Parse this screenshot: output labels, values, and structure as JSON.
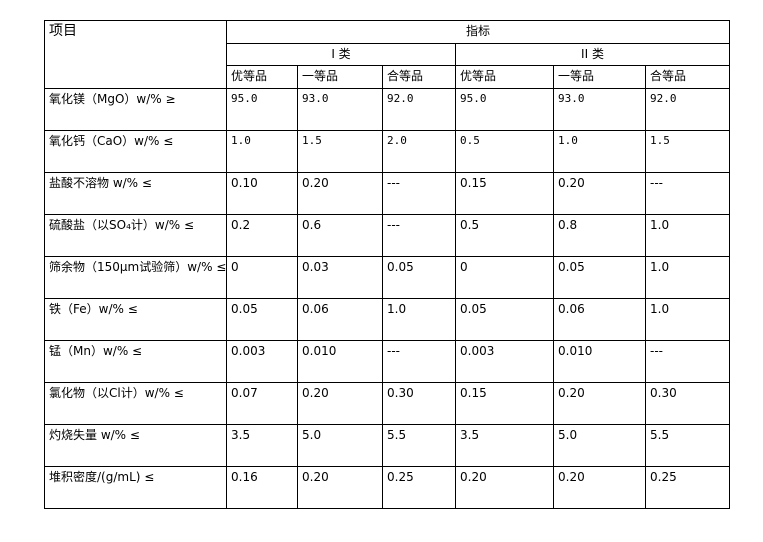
{
  "header": {
    "item": "项目",
    "indicator": "指标",
    "class1": "I 类",
    "class2": "II 类",
    "grades": [
      "优等品",
      "一等品",
      "合等品",
      "优等品",
      "一等品",
      "合等品"
    ]
  },
  "rows": [
    {
      "name": "氧化镁（MgO）w/% ≥",
      "values": [
        "95.0",
        "93.0",
        "92.0",
        "95.0",
        "93.0",
        "92.0"
      ]
    },
    {
      "name": "氧化钙（CaO）w/% ≤",
      "values": [
        "1.0",
        "1.5",
        "2.0",
        "0.5",
        "1.0",
        "1.5"
      ]
    },
    {
      "name": "盐酸不溶物 w/% ≤",
      "values": [
        "0.10",
        "0.20",
        "---",
        "0.15",
        "0.20",
        "---"
      ]
    },
    {
      "name": "硫酸盐（以SO₄计）w/% ≤",
      "values": [
        "0.2",
        "0.6",
        "---",
        "0.5",
        "0.8",
        "1.0"
      ]
    },
    {
      "name": "筛余物（150μm试验筛）w/% ≤",
      "values": [
        "0",
        "0.03",
        "0.05",
        "0",
        "0.05",
        "1.0"
      ]
    },
    {
      "name": "铁（Fe）w/% ≤",
      "values": [
        "0.05",
        "0.06",
        "1.0",
        "0.05",
        "0.06",
        "1.0"
      ]
    },
    {
      "name": "锰（Mn）w/% ≤",
      "values": [
        "0.003",
        "0.010",
        "---",
        "0.003",
        "0.010",
        "---"
      ]
    },
    {
      "name": "氯化物（以Cl计）w/% ≤",
      "values": [
        "0.07",
        "0.20",
        "0.30",
        "0.15",
        "0.20",
        "0.30"
      ]
    },
    {
      "name": "灼烧失量 w/% ≤",
      "values": [
        "3.5",
        "5.0",
        "5.5",
        "3.5",
        "5.0",
        "5.5"
      ]
    },
    {
      "name": "堆积密度/(g/mL) ≤",
      "values": [
        "0.16",
        "0.20",
        "0.25",
        "0.20",
        "0.20",
        "0.25"
      ]
    }
  ]
}
